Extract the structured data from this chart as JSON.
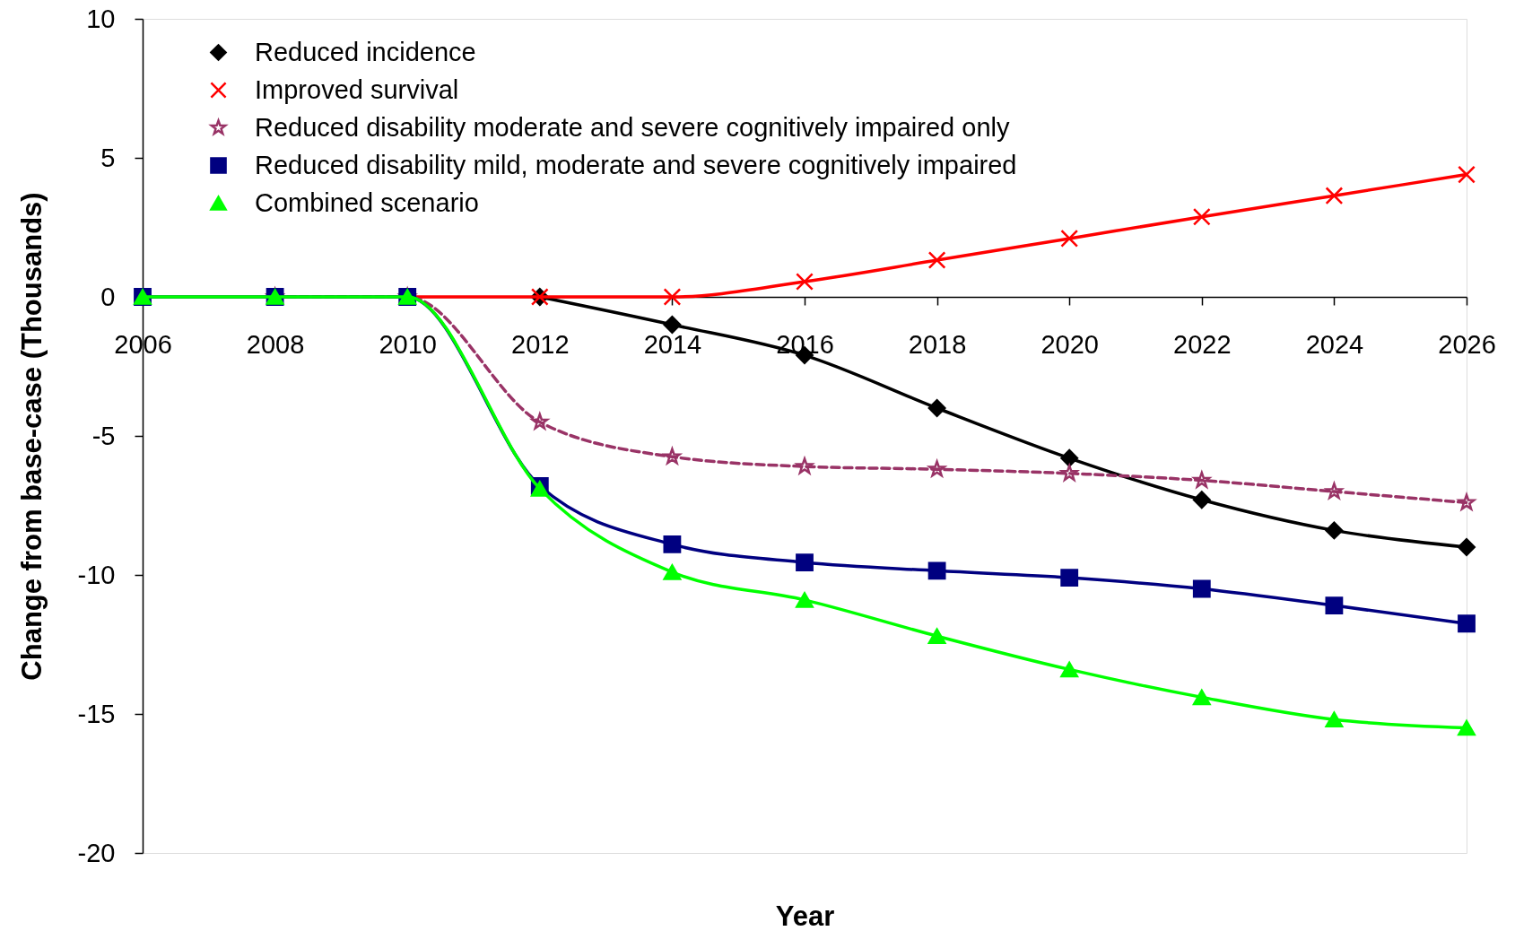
{
  "chart_data": {
    "type": "line",
    "xlabel": "Year",
    "ylabel": "Change from base-case (Thousands)",
    "x": [
      2006,
      2008,
      2010,
      2012,
      2014,
      2016,
      2018,
      2020,
      2022,
      2024,
      2026
    ],
    "xlim": [
      2006,
      2026
    ],
    "xticks": [
      2006,
      2008,
      2010,
      2012,
      2014,
      2016,
      2018,
      2020,
      2022,
      2024,
      2026
    ],
    "ylim": [
      -20,
      10
    ],
    "yticks": [
      -20,
      -15,
      -10,
      -5,
      0,
      5,
      10
    ],
    "grid": false,
    "legend": "top left",
    "series": [
      {
        "name": "Reduced incidence",
        "color": "#000000",
        "marker": "diamond",
        "line_style": "solid",
        "values": [
          null,
          null,
          null,
          0,
          -1.0,
          -2.1,
          -4.0,
          -5.8,
          -7.3,
          -8.4,
          -9.0
        ]
      },
      {
        "name": "Improved survival",
        "color": "#ff0000",
        "marker": "cross",
        "line_style": "solid",
        "values": [
          null,
          null,
          0,
          0,
          0,
          0.55,
          1.32,
          2.1,
          2.88,
          3.64,
          4.4
        ]
      },
      {
        "name": "Reduced disability moderate and severe cognitively impaired only",
        "color": "#993366",
        "marker": "star",
        "line_style": "dashed",
        "values": [
          null,
          0,
          0,
          -4.5,
          -5.75,
          -6.1,
          -6.2,
          -6.35,
          -6.6,
          -7.0,
          -7.4
        ]
      },
      {
        "name": "Reduced disability mild, moderate and severe cognitively impaired",
        "color": "#000080",
        "marker": "square",
        "line_style": "solid",
        "values": [
          0,
          0,
          0,
          -6.8,
          -8.9,
          -9.55,
          -9.85,
          -10.1,
          -10.5,
          -11.1,
          -11.75
        ]
      },
      {
        "name": "Combined scenario",
        "color": "#00ff00",
        "marker": "triangle",
        "line_style": "solid",
        "values": [
          0,
          0,
          0,
          -6.9,
          -9.9,
          -10.9,
          -12.2,
          -13.4,
          -14.4,
          -15.2,
          -15.5
        ]
      }
    ]
  }
}
